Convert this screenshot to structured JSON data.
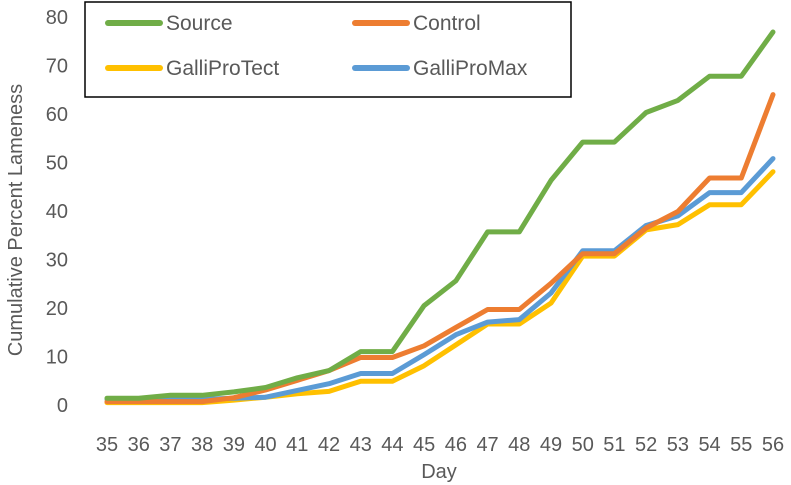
{
  "chart_data": {
    "type": "line",
    "title": "",
    "xlabel": "Day",
    "ylabel": "Cumulative Percent Lameness",
    "x": [
      35,
      36,
      37,
      38,
      39,
      40,
      41,
      42,
      43,
      44,
      45,
      46,
      47,
      48,
      49,
      50,
      51,
      52,
      53,
      54,
      55,
      56
    ],
    "ylim": [
      0,
      80
    ],
    "yticks": [
      0,
      10,
      20,
      30,
      40,
      50,
      60,
      70,
      80
    ],
    "grid": false,
    "legend_position": "top-left",
    "series": [
      {
        "name": "Source",
        "color": "#70AD47",
        "values": [
          1.4,
          1.4,
          2.0,
          2.0,
          2.7,
          3.6,
          5.6,
          7.1,
          11.0,
          11.0,
          20.5,
          25.6,
          35.7,
          35.7,
          46.3,
          54.2,
          54.2,
          60.3,
          62.8,
          67.8,
          67.8,
          76.9
        ]
      },
      {
        "name": "Control",
        "color": "#ED7D31",
        "values": [
          0.7,
          0.7,
          0.7,
          0.7,
          1.5,
          3.1,
          5.1,
          7.1,
          9.8,
          9.8,
          12.2,
          16.0,
          19.7,
          19.7,
          25.1,
          31.2,
          31.2,
          36.5,
          39.9,
          46.8,
          46.8,
          64.0
        ]
      },
      {
        "name": "GalliProTect",
        "color": "#FFC000",
        "values": [
          0.5,
          0.5,
          0.5,
          0.5,
          1.0,
          1.6,
          2.3,
          2.8,
          4.9,
          4.9,
          8.1,
          12.4,
          16.7,
          16.7,
          21.0,
          30.7,
          30.7,
          36.1,
          37.2,
          41.3,
          41.3,
          48.1
        ]
      },
      {
        "name": "GalliProMax",
        "color": "#5B9BD5",
        "values": [
          1.2,
          1.2,
          1.2,
          1.2,
          1.4,
          1.6,
          3.0,
          4.4,
          6.5,
          6.5,
          10.4,
          14.5,
          17.1,
          17.6,
          23.1,
          31.8,
          31.8,
          37.0,
          39.0,
          43.8,
          43.8,
          50.8
        ]
      }
    ]
  }
}
